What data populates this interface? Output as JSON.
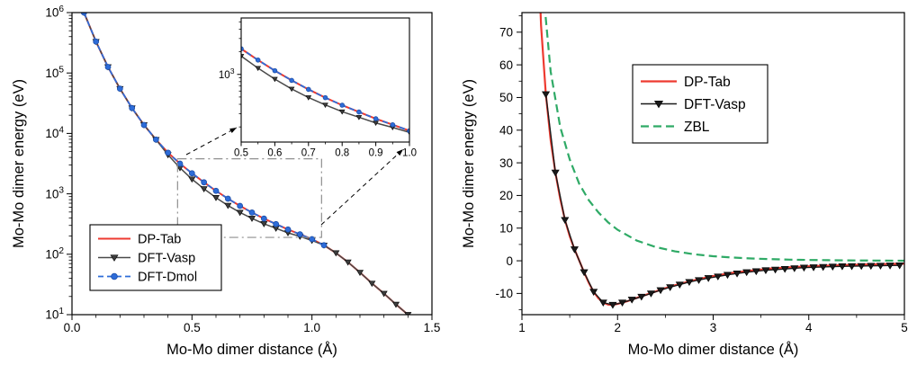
{
  "figure": {
    "background": "#ffffff"
  },
  "chart_data": [
    {
      "id": "left-log-dimer-chart",
      "type": "line",
      "xlabel": "Mo-Mo dimer distance (Å)",
      "ylabel": "Mo-Mo dimer energy (eV)",
      "yscale": "log",
      "xlim": [
        0.0,
        1.5
      ],
      "xticks": [
        0.0,
        0.5,
        1.0,
        1.5
      ],
      "xtick_labels": [
        "0.0",
        "0.5",
        "1.0",
        "1.5"
      ],
      "xminor_step": 0.1,
      "ylim_exp": [
        1,
        6
      ],
      "grid": false,
      "legend": {
        "position": "bottom-left",
        "entries": [
          "DP-Tab",
          "DFT-Vasp",
          "DFT-Dmol"
        ]
      },
      "series": [
        {
          "name": "DP-Tab",
          "color": "#ee3a30",
          "line": "solid",
          "width": 2,
          "marker": "none",
          "x": [
            0.05,
            0.1,
            0.15,
            0.2,
            0.25,
            0.3,
            0.35,
            0.4,
            0.45,
            0.5,
            0.55,
            0.6,
            0.65,
            0.7,
            0.75,
            0.8,
            0.85,
            0.9,
            0.95,
            1.0,
            1.05,
            1.1,
            1.15,
            1.2,
            1.25,
            1.3,
            1.35,
            1.4
          ],
          "y": [
            1000000,
            331000,
            126000,
            55000,
            26300,
            13800,
            7900,
            4800,
            3160,
            2190,
            1550,
            1120,
            832,
            631,
            490,
            389,
            316,
            257,
            214,
            178,
            141,
            105,
            74,
            50,
            33,
            22.4,
            14.8,
            10
          ]
        },
        {
          "name": "DFT-Vasp",
          "color": "#4a4a4a",
          "line": "solid",
          "width": 1.5,
          "marker": "triangle-down",
          "marker_color": "#3d3d3d",
          "marker_edge": "#000000",
          "x": [
            0.05,
            0.1,
            0.15,
            0.2,
            0.25,
            0.3,
            0.35,
            0.4,
            0.45,
            0.5,
            0.55,
            0.6,
            0.65,
            0.7,
            0.75,
            0.8,
            0.85,
            0.9,
            0.95,
            1.0,
            1.05,
            1.1,
            1.15,
            1.2,
            1.25,
            1.3,
            1.35,
            1.4
          ],
          "y": [
            1000000,
            331000,
            126000,
            55000,
            26300,
            13800,
            7900,
            4420,
            2690,
            1750,
            1210,
            865,
            640,
            492,
            392,
            319,
            269,
            226,
            197,
            169,
            141,
            105,
            74,
            50,
            33,
            22.4,
            14.8,
            10
          ]
        },
        {
          "name": "DFT-Dmol",
          "color": "#2e6cd8",
          "line": "dashed",
          "dash": "6 4",
          "width": 1.8,
          "marker": "circle",
          "marker_color": "#2e6cd8",
          "marker_edge": "#1d4fa8",
          "x": [
            0.05,
            0.1,
            0.15,
            0.2,
            0.25,
            0.3,
            0.35,
            0.4,
            0.45,
            0.5,
            0.55,
            0.6,
            0.65,
            0.7,
            0.75,
            0.8,
            0.85,
            0.9,
            0.95,
            1.0,
            1.05
          ],
          "y": [
            1000000,
            331000,
            126000,
            55000,
            26300,
            13800,
            7900,
            4800,
            3160,
            2190,
            1550,
            1120,
            832,
            631,
            490,
            389,
            316,
            257,
            214,
            178,
            141
          ]
        }
      ],
      "inset": {
        "xlim": [
          0.5,
          1.0
        ],
        "xticks": [
          0.5,
          0.6,
          0.7,
          0.8,
          0.9,
          1.0
        ],
        "xtick_labels": [
          "0.5",
          "0.6",
          "0.7",
          "0.8",
          "0.9",
          "1.0"
        ],
        "xminor_step": 0.05,
        "ylim_exp": [
          2.1,
          3.75
        ],
        "ytick_exps": [
          3
        ]
      },
      "zoom_box": {
        "x0": 0.44,
        "x1": 1.04,
        "y0": 190,
        "y1": 3800
      }
    },
    {
      "id": "right-linear-dimer-chart",
      "type": "line",
      "xlabel": "Mo-Mo dimer distance (Å)",
      "ylabel": "Mo-Mo dimer energy (eV)",
      "yscale": "linear",
      "xlim": [
        1,
        5
      ],
      "xticks": [
        1,
        2,
        3,
        4,
        5
      ],
      "xtick_labels": [
        "1",
        "2",
        "3",
        "4",
        "5"
      ],
      "xminor_step": 0.5,
      "ylim": [
        -16.5,
        76
      ],
      "yticks": [
        -10,
        0,
        10,
        20,
        30,
        40,
        50,
        60,
        70
      ],
      "ytick_labels": [
        "-10",
        "0",
        "10",
        "20",
        "30",
        "40",
        "50",
        "60",
        "70"
      ],
      "yminors": [
        -15,
        -5,
        5,
        15,
        25,
        35,
        45,
        55,
        65,
        75
      ],
      "grid": false,
      "legend": {
        "position": "top-center",
        "entries": [
          "DP-Tab",
          "DFT-Vasp",
          "ZBL"
        ]
      },
      "series": [
        {
          "name": "DP-Tab",
          "color": "#ee3a30",
          "line": "solid",
          "width": 2.2,
          "marker": "none",
          "x": [
            1.15,
            1.2,
            1.25,
            1.3,
            1.35,
            1.4,
            1.45,
            1.5,
            1.55,
            1.6,
            1.65,
            1.7,
            1.75,
            1.8,
            1.85,
            1.9,
            1.95,
            2.0,
            2.1,
            2.2,
            2.3,
            2.4,
            2.5,
            2.6,
            2.7,
            2.8,
            2.9,
            3.0,
            3.2,
            3.4,
            3.6,
            3.8,
            4.0,
            4.2,
            4.4,
            4.6,
            4.8,
            5.0
          ],
          "y": [
            110,
            72,
            51,
            37,
            27,
            19,
            12.5,
            7.5,
            3.5,
            0,
            -3.5,
            -6.8,
            -9.5,
            -11.5,
            -12.8,
            -13.4,
            -13.5,
            -13.2,
            -12.4,
            -11.4,
            -10.4,
            -9.4,
            -8.4,
            -7.5,
            -6.7,
            -6.0,
            -5.3,
            -4.7,
            -3.7,
            -3.0,
            -2.4,
            -2.0,
            -1.7,
            -1.5,
            -1.3,
            -1.15,
            -1.0,
            -0.9
          ]
        },
        {
          "name": "DFT-Vasp",
          "color": "#1a1a1a",
          "line": "solid",
          "width": 1.4,
          "marker": "triangle-down",
          "marker_color": "#1a1a1a",
          "marker_edge": "#000000",
          "x": [
            1.25,
            1.35,
            1.45,
            1.55,
            1.65,
            1.75,
            1.85,
            1.95,
            2.05,
            2.15,
            2.25,
            2.35,
            2.45,
            2.55,
            2.65,
            2.75,
            2.85,
            2.95,
            3.05,
            3.15,
            3.25,
            3.35,
            3.45,
            3.55,
            3.65,
            3.75,
            3.85,
            3.95,
            4.05,
            4.15,
            4.25,
            4.35,
            4.45,
            4.55,
            4.65,
            4.75,
            4.85,
            4.95
          ],
          "y": [
            51,
            27,
            12.5,
            3.5,
            -3.5,
            -9.5,
            -12.8,
            -13.5,
            -12.8,
            -11.9,
            -11.0,
            -10.0,
            -9.0,
            -8.1,
            -7.3,
            -6.5,
            -5.9,
            -5.3,
            -4.8,
            -4.3,
            -3.9,
            -3.5,
            -3.2,
            -2.9,
            -2.7,
            -2.5,
            -2.3,
            -2.1,
            -2.0,
            -1.9,
            -1.8,
            -1.7,
            -1.65,
            -1.6,
            -1.55,
            -1.5,
            -1.45,
            -1.4
          ]
        },
        {
          "name": "ZBL",
          "color": "#2faa66",
          "line": "dashed",
          "dash": "9 5",
          "width": 2.2,
          "marker": "none",
          "x": [
            1.2,
            1.3,
            1.4,
            1.5,
            1.6,
            1.7,
            1.8,
            1.9,
            2.0,
            2.2,
            2.4,
            2.6,
            2.8,
            3.0,
            3.2,
            3.4,
            3.6,
            3.8,
            4.0,
            4.2,
            4.4,
            4.6,
            4.8,
            5.0
          ],
          "y": [
            90,
            58,
            41,
            31,
            23.5,
            18.5,
            14.8,
            11.8,
            9.5,
            6.2,
            4.2,
            2.9,
            2.0,
            1.4,
            1.0,
            0.7,
            0.5,
            0.35,
            0.25,
            0.18,
            0.12,
            0.08,
            0.05,
            0.02
          ]
        }
      ]
    }
  ]
}
